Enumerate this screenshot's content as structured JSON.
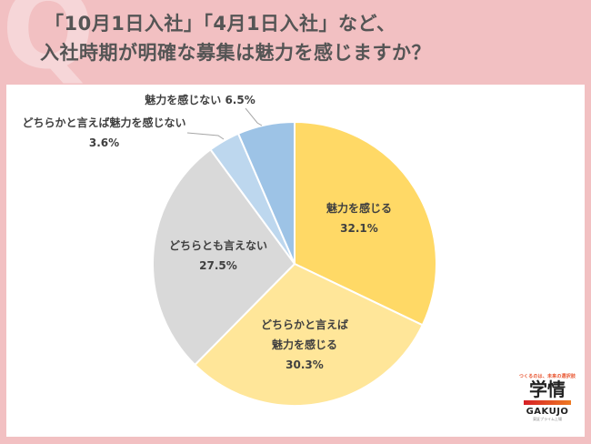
{
  "header": {
    "q_mark": "Q",
    "title_line1": "「10月1日入社」「4月1日入社」など、",
    "title_line2": "入社時期が明確な募集は魅力を感じますか？"
  },
  "chart_data": {
    "type": "pie",
    "title": "「10月1日入社」「4月1日入社」など、入社時期が明確な募集は魅力を感じますか？",
    "start_angle_deg": 0,
    "direction": "clockwise",
    "slices": [
      {
        "label": "魅力を感じる",
        "value": 32.1,
        "display": "32.1%",
        "color": "#ffd966"
      },
      {
        "label": "どちらかと言えば魅力を感じる",
        "value": 30.3,
        "display": "30.3%",
        "color": "#ffe699"
      },
      {
        "label": "どちらとも言えない",
        "value": 27.5,
        "display": "27.5%",
        "color": "#d9d9d9"
      },
      {
        "label": "どちらかと言えば魅力を感じない",
        "value": 3.6,
        "display": "3.6%",
        "color": "#bdd7ee"
      },
      {
        "label": "魅力を感じない",
        "value": 6.5,
        "display": "6.5%",
        "color": "#9dc3e6"
      }
    ]
  },
  "labels": {
    "s0_l1": "魅力を感じる",
    "s0_pct": "32.1%",
    "s1_l1": "どちらかと言えば",
    "s1_l2": "魅力を感じる",
    "s1_pct": "30.3%",
    "s2_l1": "どちらとも言えない",
    "s2_pct": "27.5%",
    "s3_l1": "どちらかと言えば魅力を感じない",
    "s3_pct": "3.6%",
    "s4_l1": "魅力を感じない 6.5%"
  },
  "logo": {
    "tagline": "つくるのは、未来の選択肢",
    "kanji": "学情",
    "name": "GAKUJO",
    "sub": "東証プライム上場"
  }
}
